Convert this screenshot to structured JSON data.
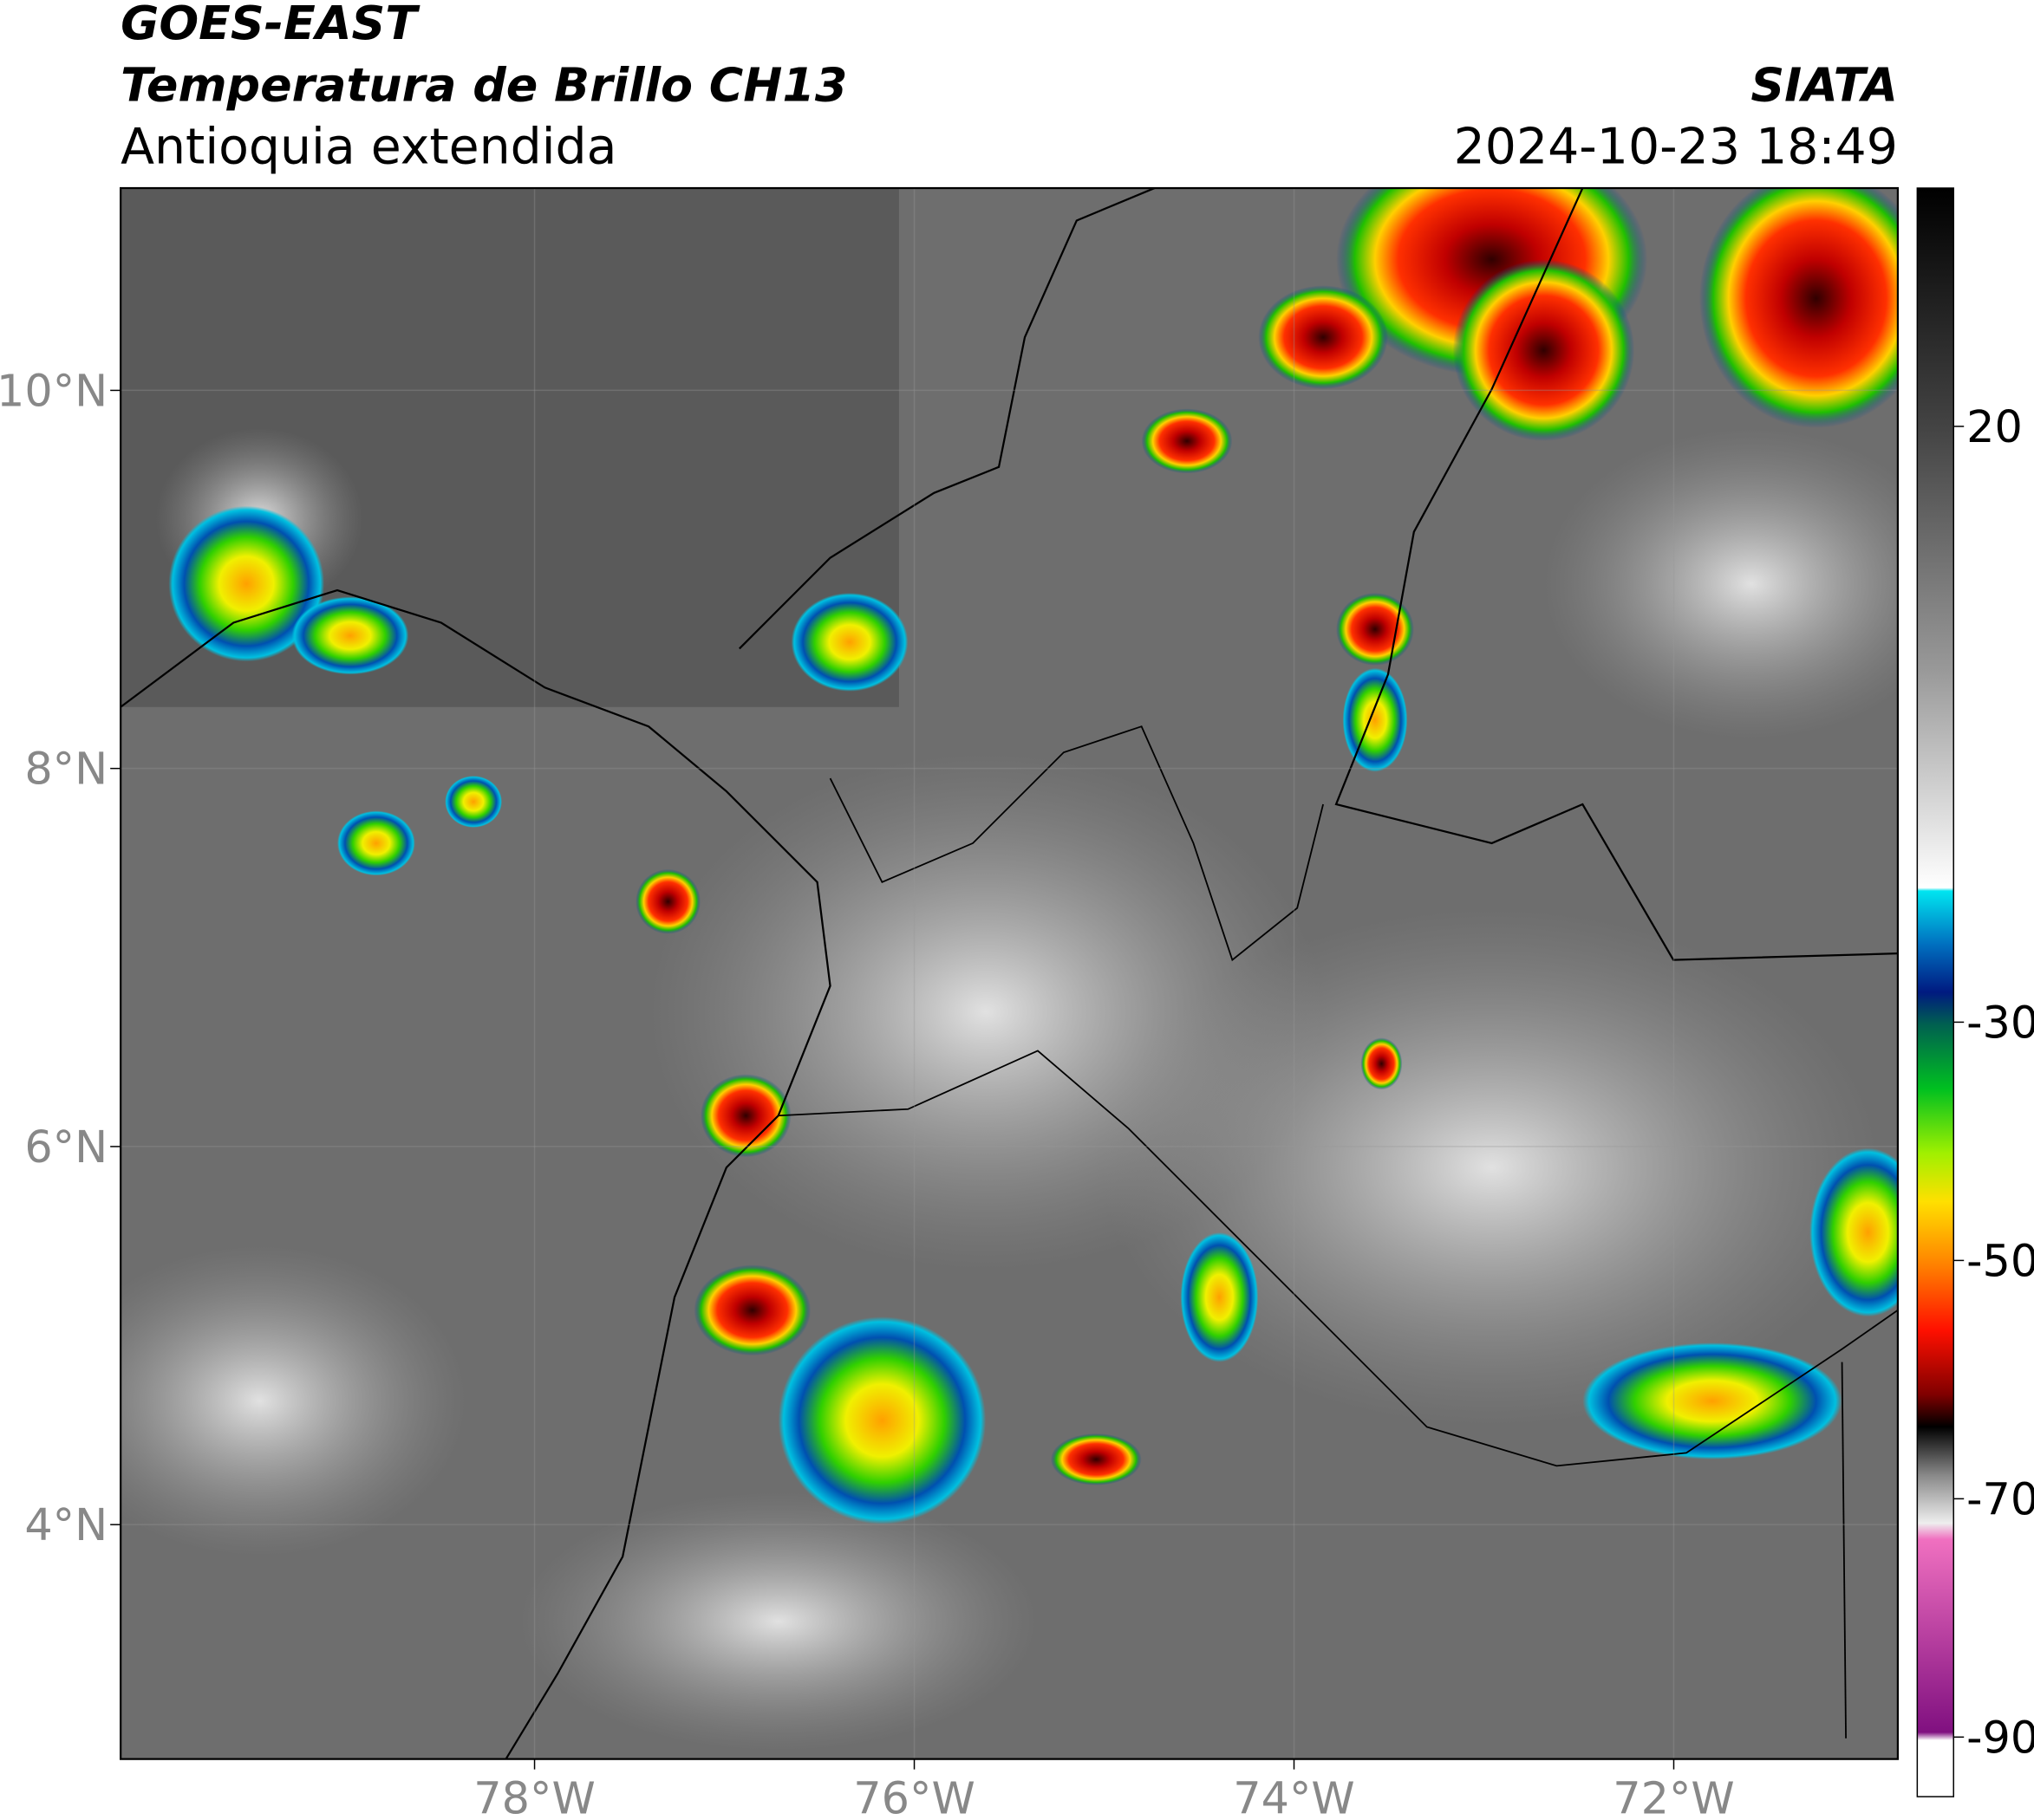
{
  "header": {
    "source": "GOES-EAST",
    "title": "Temperatura de Brillo CH13",
    "region": "Antioquia extendida",
    "agency": "SIATA",
    "datetime": "2024-10-23 18:49"
  },
  "map": {
    "xlim": [
      -80.18,
      -70.82
    ],
    "ylim": [
      2.76,
      11.07
    ],
    "xticks": [
      {
        "value": -78,
        "label": "78°W"
      },
      {
        "value": -76,
        "label": "76°W"
      },
      {
        "value": -74,
        "label": "74°W"
      },
      {
        "value": -72,
        "label": "72°W"
      }
    ],
    "yticks": [
      {
        "value": 10,
        "label": "10°N"
      },
      {
        "value": 8,
        "label": "8°N"
      },
      {
        "value": 6,
        "label": "6°N"
      },
      {
        "value": 4,
        "label": "4°N"
      }
    ]
  },
  "colorbar": {
    "lim": [
      -95,
      40
    ],
    "ticks": [
      20,
      -30,
      -50,
      -70,
      -90
    ]
  }
}
